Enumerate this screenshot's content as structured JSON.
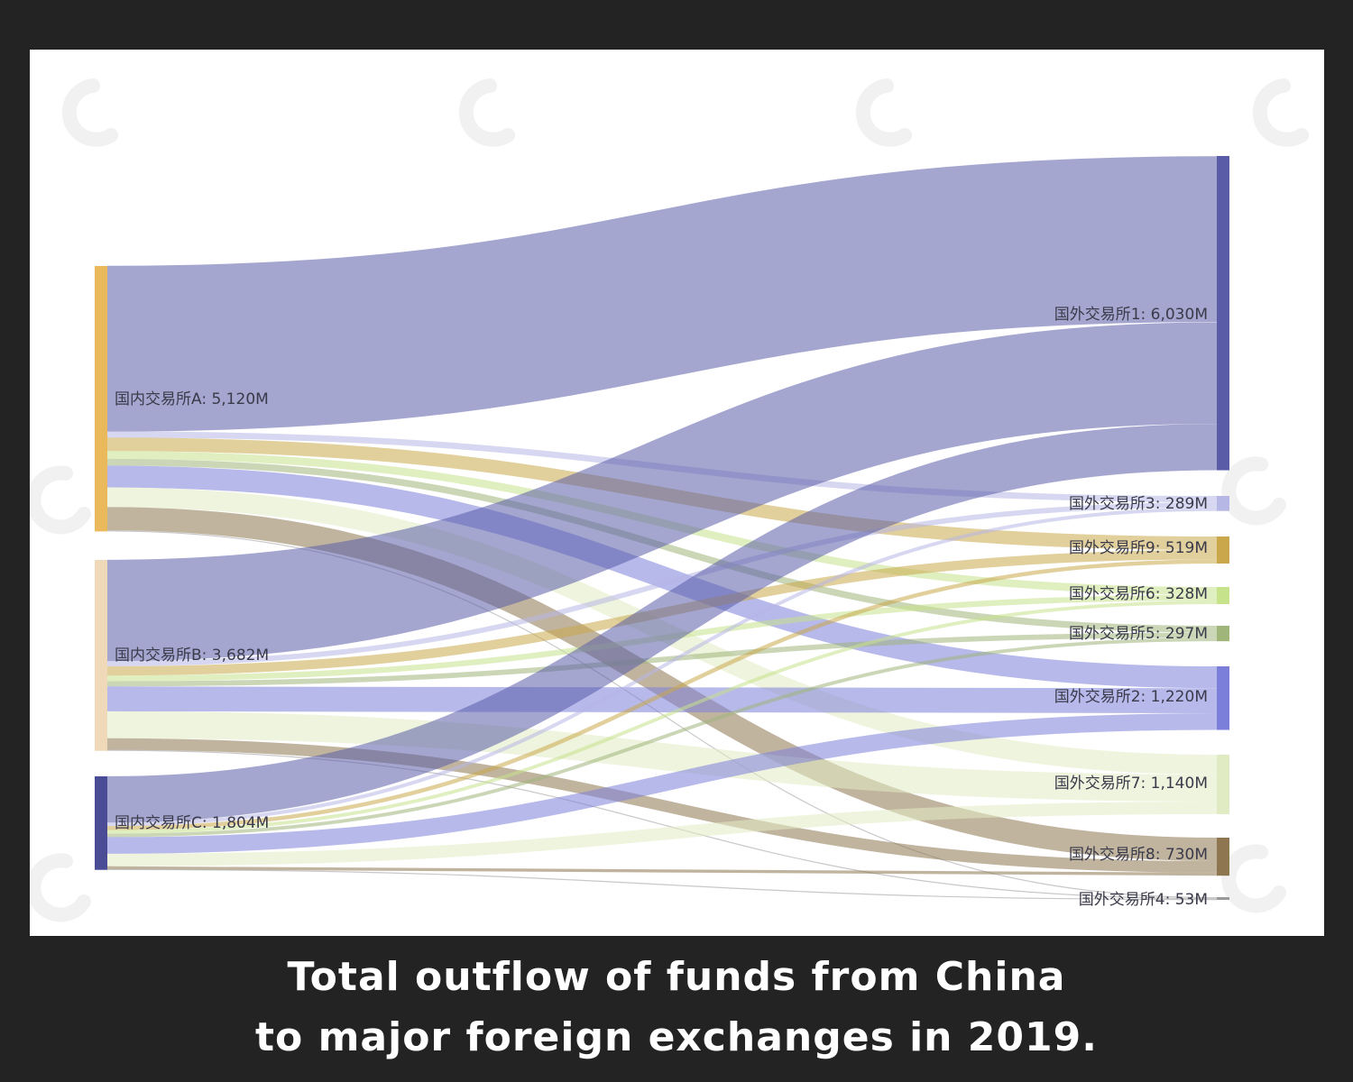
{
  "caption": {
    "line1": "Total outflow of funds from China",
    "line2": "to major foreign exchanges in 2019."
  },
  "chart_data": {
    "type": "sankey",
    "units": "M",
    "sources": [
      {
        "id": "A",
        "label": "国内交易所A: 5,120M",
        "value": 5120,
        "color": "#e9b95b"
      },
      {
        "id": "B",
        "label": "国内交易所B: 3,682M",
        "value": 3682,
        "color": "#f0d9b8"
      },
      {
        "id": "C",
        "label": "国内交易所C: 1,804M",
        "value": 1804,
        "color": "#4a4d96"
      }
    ],
    "targets": [
      {
        "id": "1",
        "label": "国外交易所1: 6,030M",
        "value": 6030,
        "color": "#5a5ca8"
      },
      {
        "id": "3",
        "label": "国外交易所3: 289M",
        "value": 289,
        "color": "#b7b7e6"
      },
      {
        "id": "9",
        "label": "国外交易所9: 519M",
        "value": 519,
        "color": "#c9a74a"
      },
      {
        "id": "6",
        "label": "国外交易所6: 328M",
        "value": 328,
        "color": "#c6e28a"
      },
      {
        "id": "5",
        "label": "国外交易所5: 297M",
        "value": 297,
        "color": "#9fb57a"
      },
      {
        "id": "2",
        "label": "国外交易所2: 1,220M",
        "value": 1220,
        "color": "#7c7fda"
      },
      {
        "id": "7",
        "label": "国外交易所7: 1,140M",
        "value": 1140,
        "color": "#e1ebc3"
      },
      {
        "id": "8",
        "label": "国外交易所8: 730M",
        "value": 730,
        "color": "#8d7650"
      },
      {
        "id": "4",
        "label": "国外交易所4: 53M",
        "value": 53,
        "color": "#9a9a9a"
      }
    ],
    "flows": [
      {
        "source": "A",
        "target": "1",
        "value": 3190
      },
      {
        "source": "A",
        "target": "3",
        "value": 120
      },
      {
        "source": "A",
        "target": "9",
        "value": 260
      },
      {
        "source": "A",
        "target": "6",
        "value": 150
      },
      {
        "source": "A",
        "target": "5",
        "value": 130
      },
      {
        "source": "A",
        "target": "2",
        "value": 420
      },
      {
        "source": "A",
        "target": "7",
        "value": 380
      },
      {
        "source": "A",
        "target": "8",
        "value": 450
      },
      {
        "source": "A",
        "target": "4",
        "value": 20
      },
      {
        "source": "B",
        "target": "1",
        "value": 1950
      },
      {
        "source": "B",
        "target": "3",
        "value": 100
      },
      {
        "source": "B",
        "target": "9",
        "value": 180
      },
      {
        "source": "B",
        "target": "6",
        "value": 110
      },
      {
        "source": "B",
        "target": "5",
        "value": 100
      },
      {
        "source": "B",
        "target": "2",
        "value": 480
      },
      {
        "source": "B",
        "target": "7",
        "value": 520
      },
      {
        "source": "B",
        "target": "8",
        "value": 222
      },
      {
        "source": "B",
        "target": "4",
        "value": 20
      },
      {
        "source": "C",
        "target": "1",
        "value": 890
      },
      {
        "source": "C",
        "target": "3",
        "value": 69
      },
      {
        "source": "C",
        "target": "9",
        "value": 79
      },
      {
        "source": "C",
        "target": "6",
        "value": 68
      },
      {
        "source": "C",
        "target": "5",
        "value": 67
      },
      {
        "source": "C",
        "target": "2",
        "value": 320
      },
      {
        "source": "C",
        "target": "7",
        "value": 240
      },
      {
        "source": "C",
        "target": "8",
        "value": 58
      },
      {
        "source": "C",
        "target": "4",
        "value": 13
      }
    ]
  }
}
